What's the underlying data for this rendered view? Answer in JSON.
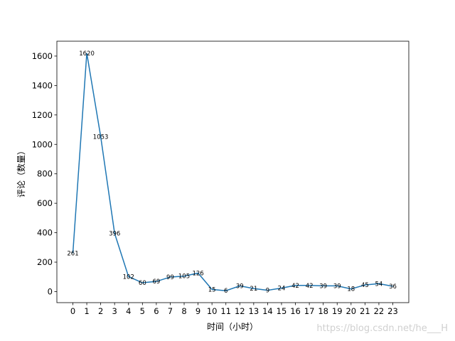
{
  "chart_data": {
    "type": "line",
    "xlabel": "时间（小时）",
    "ylabel": "评论（数量）",
    "x": [
      0,
      1,
      2,
      3,
      4,
      5,
      6,
      7,
      8,
      9,
      10,
      11,
      12,
      13,
      14,
      15,
      16,
      17,
      18,
      19,
      20,
      21,
      22,
      23
    ],
    "values": [
      261,
      1620,
      1053,
      396,
      102,
      60,
      69,
      99,
      105,
      126,
      15,
      6,
      39,
      21,
      9,
      24,
      42,
      42,
      39,
      39,
      18,
      45,
      54,
      36
    ],
    "color": "#1f77b4",
    "xlim": [
      -1.15,
      24.15
    ],
    "xticks": [
      0,
      1,
      2,
      3,
      4,
      5,
      6,
      7,
      8,
      9,
      10,
      11,
      12,
      13,
      14,
      15,
      16,
      17,
      18,
      19,
      20,
      21,
      22,
      23
    ],
    "ylim": [
      -75,
      1701
    ],
    "yticks": [
      0,
      200,
      400,
      600,
      800,
      1000,
      1200,
      1400,
      1600
    ],
    "grid": false,
    "watermark": "https://blog.csdn.net/he___H"
  }
}
